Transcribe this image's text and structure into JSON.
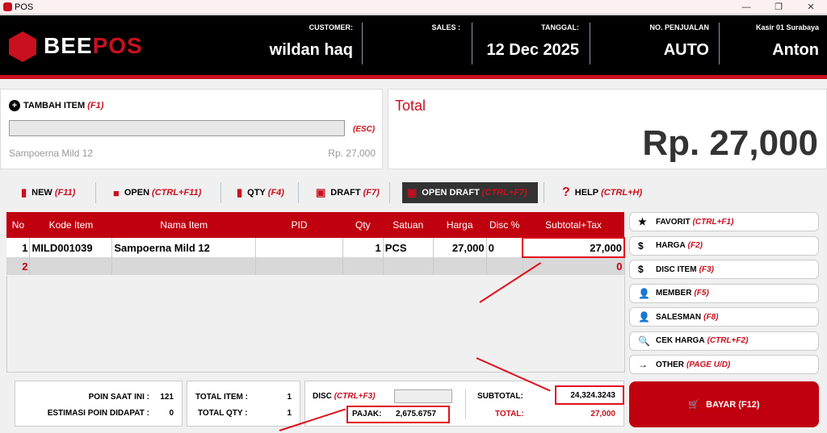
{
  "window": {
    "title": "POS",
    "controls": [
      "—",
      "❐",
      "✕"
    ]
  },
  "header": {
    "brand_a": "BEE",
    "brand_b": "POS",
    "customer_label": "CUSTOMER:",
    "customer": "wildan haq",
    "sales_label": "SALES :",
    "sales": "",
    "tanggal_label": "TANGGAL:",
    "tanggal": "12 Dec 2025",
    "nopenjualan_label": "NO. PENJUALAN",
    "nopenjualan": "AUTO",
    "kasir_label": "Kasir 01 Surabaya",
    "kasir": "Anton"
  },
  "add_item": {
    "label": "TAMBAH ITEM",
    "shortcut": "(F1)",
    "input": "",
    "esc": "(ESC)",
    "last_item": "Sampoerna Mild 12",
    "last_price": "Rp. 27,000"
  },
  "total": {
    "label": "Total",
    "value": "Rp. 27,000"
  },
  "toolbar": [
    {
      "label": "NEW",
      "shortcut": "(F11)"
    },
    {
      "label": "OPEN",
      "shortcut": "(CTRL+F11)"
    },
    {
      "label": "QTY",
      "shortcut": "(F4)"
    },
    {
      "label": "DRAFT",
      "shortcut": "(F7)"
    },
    {
      "label": "OPEN DRAFT",
      "shortcut": "(CTRL+F7)"
    },
    {
      "label": "HELP",
      "shortcut": "(CTRL+H)"
    }
  ],
  "table": {
    "headers": [
      "No",
      "Kode Item",
      "Nama Item",
      "PID",
      "Qty",
      "Satuan",
      "Harga",
      "Disc %",
      "Subtotal+Tax"
    ],
    "rows": [
      [
        "1",
        "MILD001039",
        "Sampoerna Mild 12",
        "",
        "1",
        "PCS",
        "27,000",
        "0",
        "27,000"
      ],
      [
        "2",
        "",
        "",
        "",
        "",
        "",
        "",
        "",
        "0"
      ]
    ]
  },
  "side": [
    {
      "label": "FAVORIT",
      "shortcut": "(CTRL+F1)",
      "icon": "★"
    },
    {
      "label": "HARGA",
      "shortcut": "(F2)",
      "icon": "$"
    },
    {
      "label": "DISC ITEM",
      "shortcut": "(F3)",
      "icon": "$"
    },
    {
      "label": "MEMBER",
      "shortcut": "(F5)",
      "icon": "👤"
    },
    {
      "label": "SALESMAN",
      "shortcut": "(F8)",
      "icon": "👤"
    },
    {
      "label": "CEK HARGA",
      "shortcut": "(CTRL+F2)",
      "icon": "🔍"
    },
    {
      "label": "OTHER",
      "shortcut": "(PAGE U/D)",
      "icon": "→"
    }
  ],
  "summary": {
    "poin_label": "POIN SAAT INI :",
    "poin": "121",
    "estimasi_label": "ESTIMASI POIN DIDAPAT :",
    "estimasi": "0",
    "total_item_label": "TOTAL ITEM :",
    "total_item": "1",
    "total_qty_label": "TOTAL QTY :",
    "total_qty": "1",
    "disc_label": "DISC",
    "disc_shortcut": "(CTRL+F3)",
    "pajak_label": "PAJAK:",
    "pajak": "2,675.6757",
    "subtotal_label": "SUBTOTAL:",
    "subtotal": "24,324.3243",
    "total_label": "TOTAL:",
    "total": "27,000"
  },
  "pay": {
    "label": "BAYAR (F12)"
  },
  "colors": {
    "accent": "#c0000f",
    "header_bg": "#000000",
    "highlight": "#e0101e"
  }
}
